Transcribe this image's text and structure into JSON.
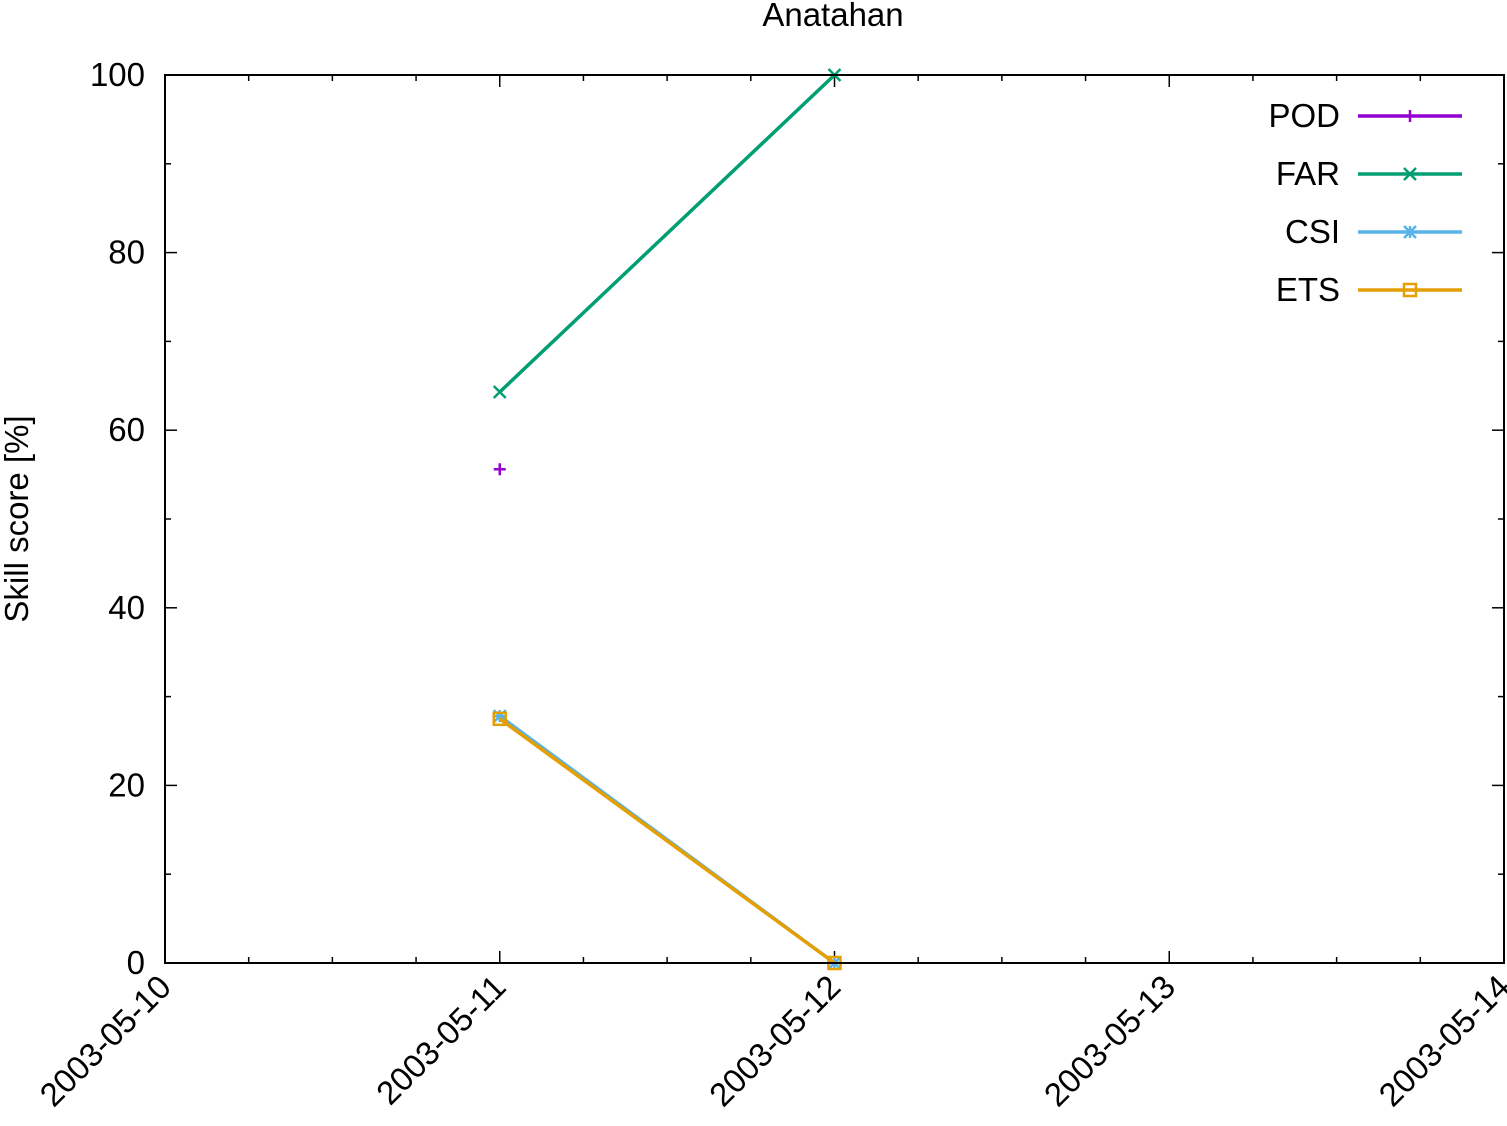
{
  "chart_data": {
    "type": "line",
    "title": "Anatahan",
    "xlabel": "",
    "ylabel": "Skill score [%]",
    "x_type": "date",
    "xlim": [
      "2003-05-10",
      "2003-05-14"
    ],
    "ylim": [
      0,
      100
    ],
    "x_ticks": [
      "2003-05-10",
      "2003-05-11",
      "2003-05-12",
      "2003-05-13",
      "2003-05-14"
    ],
    "y_ticks": [
      0,
      20,
      40,
      60,
      80,
      100
    ],
    "grid": false,
    "legend_position": "top-right",
    "series": [
      {
        "name": "POD",
        "color": "#9400d3",
        "marker": "plus",
        "x": [
          "2003-05-11"
        ],
        "y": [
          55.6
        ]
      },
      {
        "name": "FAR",
        "color": "#009e73",
        "marker": "cross",
        "x": [
          "2003-05-11",
          "2003-05-12"
        ],
        "y": [
          64.3,
          100
        ]
      },
      {
        "name": "CSI",
        "color": "#56b4e9",
        "marker": "star",
        "x": [
          "2003-05-11",
          "2003-05-12"
        ],
        "y": [
          27.8,
          0
        ]
      },
      {
        "name": "ETS",
        "color": "#e69f00",
        "marker": "square",
        "x": [
          "2003-05-11",
          "2003-05-12"
        ],
        "y": [
          27.5,
          0
        ]
      }
    ]
  }
}
